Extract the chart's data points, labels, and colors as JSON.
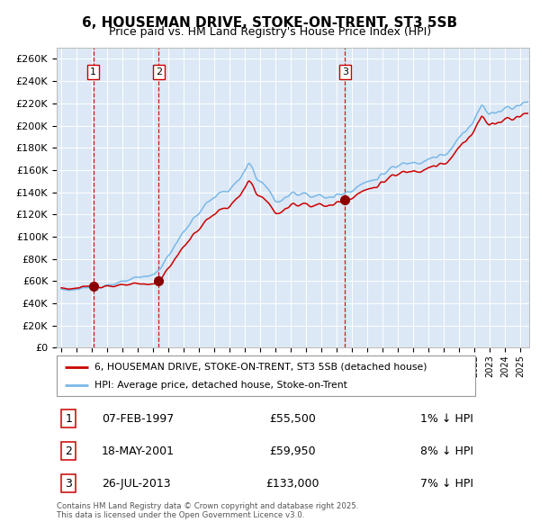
{
  "title": "6, HOUSEMAN DRIVE, STOKE-ON-TRENT, ST3 5SB",
  "subtitle": "Price paid vs. HM Land Registry's House Price Index (HPI)",
  "ylabel_ticks": [
    "£0",
    "£20K",
    "£40K",
    "£60K",
    "£80K",
    "£100K",
    "£120K",
    "£140K",
    "£160K",
    "£180K",
    "£200K",
    "£220K",
    "£240K",
    "£260K"
  ],
  "ylim": [
    0,
    270000
  ],
  "xlim_start": 1994.7,
  "xlim_end": 2025.6,
  "sale_dates": [
    1997.1,
    2001.38,
    2013.56
  ],
  "sale_prices": [
    55500,
    59950,
    133000
  ],
  "sale_labels": [
    "1",
    "2",
    "3"
  ],
  "sale_date_strs": [
    "07-FEB-1997",
    "18-MAY-2001",
    "26-JUL-2013"
  ],
  "sale_price_strs": [
    "£55,500",
    "£59,950",
    "£133,000"
  ],
  "sale_pct_strs": [
    "1% ↓ HPI",
    "8% ↓ HPI",
    "7% ↓ HPI"
  ],
  "hpi_color": "#7ab8e8",
  "sale_line_color": "#cc0000",
  "sale_dot_color": "#8b0000",
  "vline_color": "#cc0000",
  "bg_color": "#dce8f5",
  "grid_color": "#ffffff",
  "legend_line1": "6, HOUSEMAN DRIVE, STOKE-ON-TRENT, ST3 5SB (detached house)",
  "legend_line2": "HPI: Average price, detached house, Stoke-on-Trent",
  "footer": "Contains HM Land Registry data © Crown copyright and database right 2025.\nThis data is licensed under the Open Government Licence v3.0.",
  "hpi_anchors_x": [
    1995.0,
    1995.5,
    1996.0,
    1996.5,
    1997.0,
    1997.5,
    1998.0,
    1998.5,
    1999.0,
    1999.5,
    2000.0,
    2000.5,
    2001.0,
    2001.5,
    2002.0,
    2002.5,
    2003.0,
    2003.5,
    2004.0,
    2004.5,
    2005.0,
    2005.5,
    2006.0,
    2006.5,
    2007.0,
    2007.25,
    2007.5,
    2007.75,
    2008.0,
    2008.5,
    2009.0,
    2009.5,
    2010.0,
    2010.5,
    2011.0,
    2011.5,
    2012.0,
    2012.5,
    2013.0,
    2013.5,
    2014.0,
    2014.5,
    2015.0,
    2015.5,
    2016.0,
    2016.5,
    2017.0,
    2017.5,
    2018.0,
    2018.5,
    2019.0,
    2019.5,
    2020.0,
    2020.5,
    2021.0,
    2021.5,
    2022.0,
    2022.25,
    2022.5,
    2022.75,
    2023.0,
    2023.5,
    2024.0,
    2024.5,
    2025.0,
    2025.5
  ],
  "hpi_anchors_y": [
    53000,
    52000,
    52500,
    53000,
    54500,
    55000,
    56500,
    57500,
    59000,
    61000,
    63000,
    64000,
    66000,
    72000,
    83000,
    93000,
    105000,
    113000,
    122000,
    130000,
    136000,
    139000,
    143000,
    148000,
    158000,
    165000,
    162000,
    155000,
    150000,
    143000,
    132000,
    133000,
    138000,
    140000,
    139000,
    137000,
    136000,
    135000,
    137000,
    140000,
    143000,
    146000,
    149000,
    152000,
    156000,
    160000,
    163000,
    166000,
    168000,
    169000,
    171000,
    172000,
    172000,
    178000,
    188000,
    196000,
    207000,
    215000,
    218000,
    213000,
    210000,
    213000,
    216000,
    218000,
    220000,
    222000
  ]
}
